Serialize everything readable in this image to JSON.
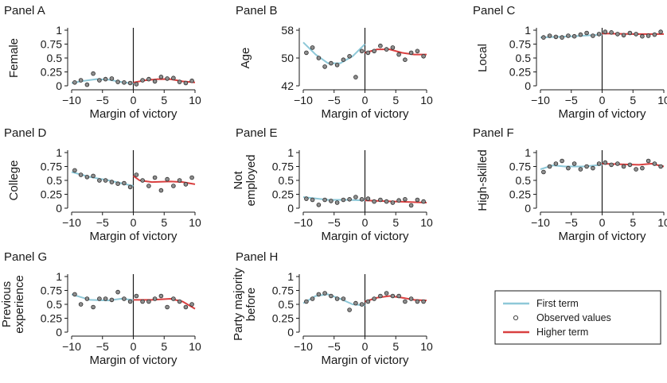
{
  "figure": {
    "xlabel": "Margin of victory",
    "legend": {
      "position": "bottom-right",
      "entries": [
        {
          "label": "First term",
          "kind": "line",
          "color": "#8ec8d8"
        },
        {
          "label": "Observed values",
          "kind": "marker"
        },
        {
          "label": "Higher term",
          "kind": "line",
          "color": "#d94040"
        }
      ]
    },
    "colors": {
      "first_term": "#8ec8d8",
      "higher_term": "#d94040",
      "marker_fill": "#8f8f8f",
      "marker_edge": "#2a2a2a"
    }
  },
  "chart_data": [
    {
      "type": "scatter",
      "panel": "Panel A",
      "ylabel": [
        "Female"
      ],
      "xlim": [
        -10,
        10
      ],
      "ylim": [
        0,
        1
      ],
      "xticks": [
        -10,
        -5,
        0,
        5,
        10
      ],
      "xticklabels": [
        "−10",
        "−5",
        "0",
        "5",
        "10"
      ],
      "yticks": [
        0,
        0.25,
        0.5,
        0.75,
        1
      ],
      "yticklabels": [
        "0",
        "0.25",
        "0.5",
        "0.75",
        "1"
      ],
      "cutoff": 0,
      "observed": [
        [
          -9.5,
          0.06
        ],
        [
          -8.5,
          0.1
        ],
        [
          -7.5,
          0.02
        ],
        [
          -6.5,
          0.22
        ],
        [
          -5.5,
          0.1
        ],
        [
          -4.5,
          0.12
        ],
        [
          -3.5,
          0.13
        ],
        [
          -2.5,
          0.07
        ],
        [
          -1.5,
          0.06
        ],
        [
          -0.5,
          0.05
        ],
        [
          0.5,
          0.03
        ],
        [
          1.5,
          0.1
        ],
        [
          2.5,
          0.12
        ],
        [
          3.5,
          0.08
        ],
        [
          4.5,
          0.16
        ],
        [
          5.5,
          0.13
        ],
        [
          6.5,
          0.14
        ],
        [
          7.5,
          0.07
        ],
        [
          8.5,
          0.05
        ],
        [
          9.5,
          0.09
        ]
      ],
      "first_term": [
        [
          -10,
          0.05
        ],
        [
          -8,
          0.09
        ],
        [
          -6,
          0.12
        ],
        [
          -4,
          0.11
        ],
        [
          -2,
          0.07
        ],
        [
          0,
          0.04
        ]
      ],
      "higher_term": [
        [
          0,
          0.06
        ],
        [
          2,
          0.1
        ],
        [
          4,
          0.12
        ],
        [
          6,
          0.12
        ],
        [
          8,
          0.08
        ],
        [
          10,
          0.06
        ]
      ]
    },
    {
      "type": "scatter",
      "panel": "Panel B",
      "ylabel": [
        "Age"
      ],
      "xlim": [
        -10,
        10
      ],
      "ylim": [
        42,
        58
      ],
      "xticks": [
        -10,
        -5,
        0,
        5,
        10
      ],
      "xticklabels": [
        "−10",
        "−5",
        "0",
        "5",
        "10"
      ],
      "yticks": [
        42,
        50,
        58
      ],
      "yticklabels": [
        "42",
        "50",
        "58"
      ],
      "cutoff": 0,
      "observed": [
        [
          -9.5,
          51.5
        ],
        [
          -8.5,
          53.0
        ],
        [
          -7.5,
          50.0
        ],
        [
          -6.5,
          47.5
        ],
        [
          -5.5,
          48.5
        ],
        [
          -4.5,
          48.0
        ],
        [
          -3.5,
          49.5
        ],
        [
          -2.5,
          50.5
        ],
        [
          -1.5,
          44.5
        ],
        [
          -0.5,
          52.0
        ],
        [
          0.5,
          51.5
        ],
        [
          1.5,
          52.0
        ],
        [
          2.5,
          53.5
        ],
        [
          3.5,
          52.5
        ],
        [
          4.5,
          53.0
        ],
        [
          5.5,
          51.0
        ],
        [
          6.5,
          49.5
        ],
        [
          7.5,
          51.5
        ],
        [
          8.5,
          52.0
        ],
        [
          9.5,
          50.5
        ]
      ],
      "first_term": [
        [
          -10,
          54.5
        ],
        [
          -8,
          51.0
        ],
        [
          -6,
          48.5
        ],
        [
          -4,
          48.5
        ],
        [
          -2,
          50.5
        ],
        [
          0,
          54.0
        ]
      ],
      "higher_term": [
        [
          0,
          51.5
        ],
        [
          2,
          52.5
        ],
        [
          4,
          52.5
        ],
        [
          6,
          51.5
        ],
        [
          8,
          51.0
        ],
        [
          10,
          51.0
        ]
      ]
    },
    {
      "type": "scatter",
      "panel": "Panel C",
      "ylabel": [
        "Local"
      ],
      "xlim": [
        -10,
        10
      ],
      "ylim": [
        0,
        1
      ],
      "xticks": [
        -10,
        -5,
        0,
        5,
        10
      ],
      "xticklabels": [
        "−10",
        "−5",
        "0",
        "5",
        "10"
      ],
      "yticks": [
        0,
        0.25,
        0.5,
        0.75,
        1
      ],
      "yticklabels": [
        "0",
        "0.25",
        "0.5",
        "0.75",
        "1"
      ],
      "cutoff": 0,
      "observed": [
        [
          -9.5,
          0.87
        ],
        [
          -8.5,
          0.9
        ],
        [
          -7.5,
          0.88
        ],
        [
          -6.5,
          0.87
        ],
        [
          -5.5,
          0.9
        ],
        [
          -4.5,
          0.89
        ],
        [
          -3.5,
          0.92
        ],
        [
          -2.5,
          0.95
        ],
        [
          -1.5,
          0.9
        ],
        [
          -0.5,
          0.93
        ],
        [
          0.5,
          0.97
        ],
        [
          1.5,
          0.96
        ],
        [
          2.5,
          0.93
        ],
        [
          3.5,
          0.91
        ],
        [
          4.5,
          0.95
        ],
        [
          5.5,
          0.93
        ],
        [
          6.5,
          0.89
        ],
        [
          7.5,
          0.9
        ],
        [
          8.5,
          0.92
        ],
        [
          9.5,
          0.97
        ]
      ],
      "first_term": [
        [
          -10,
          0.87
        ],
        [
          -5,
          0.89
        ],
        [
          0,
          0.92
        ]
      ],
      "higher_term": [
        [
          0,
          0.94
        ],
        [
          5,
          0.93
        ],
        [
          10,
          0.93
        ]
      ]
    },
    {
      "type": "scatter",
      "panel": "Panel D",
      "ylabel": [
        "College"
      ],
      "xlim": [
        -10,
        10
      ],
      "ylim": [
        0,
        1
      ],
      "xticks": [
        -10,
        -5,
        0,
        5,
        10
      ],
      "xticklabels": [
        "−10",
        "−5",
        "0",
        "5",
        "10"
      ],
      "yticks": [
        0,
        0.25,
        0.5,
        0.75,
        1
      ],
      "yticklabels": [
        "0",
        "0.25",
        "0.5",
        "0.75",
        "1"
      ],
      "cutoff": 0,
      "observed": [
        [
          -9.5,
          0.68
        ],
        [
          -8.5,
          0.6
        ],
        [
          -7.5,
          0.56
        ],
        [
          -6.5,
          0.58
        ],
        [
          -5.5,
          0.5
        ],
        [
          -4.5,
          0.5
        ],
        [
          -3.5,
          0.47
        ],
        [
          -2.5,
          0.44
        ],
        [
          -1.5,
          0.45
        ],
        [
          -0.5,
          0.38
        ],
        [
          0.5,
          0.6
        ],
        [
          1.5,
          0.5
        ],
        [
          2.5,
          0.4
        ],
        [
          3.5,
          0.55
        ],
        [
          4.5,
          0.32
        ],
        [
          5.5,
          0.52
        ],
        [
          6.5,
          0.4
        ],
        [
          7.5,
          0.5
        ],
        [
          8.5,
          0.43
        ],
        [
          9.5,
          0.55
        ]
      ],
      "first_term": [
        [
          -10,
          0.65
        ],
        [
          -7,
          0.56
        ],
        [
          -4,
          0.5
        ],
        [
          -2,
          0.45
        ],
        [
          0,
          0.4
        ]
      ],
      "higher_term": [
        [
          0,
          0.58
        ],
        [
          1,
          0.5
        ],
        [
          3,
          0.47
        ],
        [
          6,
          0.48
        ],
        [
          8,
          0.47
        ],
        [
          10,
          0.43
        ]
      ]
    },
    {
      "type": "scatter",
      "panel": "Panel E",
      "ylabel": [
        "Not",
        "employed"
      ],
      "xlim": [
        -10,
        10
      ],
      "ylim": [
        0,
        1
      ],
      "xticks": [
        -10,
        -5,
        0,
        5,
        10
      ],
      "xticklabels": [
        "−10",
        "−5",
        "0",
        "5",
        "10"
      ],
      "yticks": [
        0,
        0.25,
        0.5,
        0.75,
        1
      ],
      "yticklabels": [
        "0",
        "0.25",
        "0.5",
        "0.75",
        "1"
      ],
      "cutoff": 0,
      "observed": [
        [
          -9.5,
          0.17
        ],
        [
          -8.5,
          0.15
        ],
        [
          -7.5,
          0.06
        ],
        [
          -6.5,
          0.15
        ],
        [
          -5.5,
          0.13
        ],
        [
          -4.5,
          0.1
        ],
        [
          -3.5,
          0.15
        ],
        [
          -2.5,
          0.16
        ],
        [
          -1.5,
          0.2
        ],
        [
          -0.5,
          0.16
        ],
        [
          0.5,
          0.17
        ],
        [
          1.5,
          0.12
        ],
        [
          2.5,
          0.15
        ],
        [
          3.5,
          0.12
        ],
        [
          4.5,
          0.1
        ],
        [
          5.5,
          0.14
        ],
        [
          6.5,
          0.16
        ],
        [
          7.5,
          0.05
        ],
        [
          8.5,
          0.15
        ],
        [
          9.5,
          0.12
        ]
      ],
      "first_term": [
        [
          -10,
          0.2
        ],
        [
          -6,
          0.15
        ],
        [
          -3,
          0.15
        ],
        [
          0,
          0.14
        ]
      ],
      "higher_term": [
        [
          0,
          0.14
        ],
        [
          5,
          0.12
        ],
        [
          10,
          0.1
        ]
      ]
    },
    {
      "type": "scatter",
      "panel": "Panel F",
      "ylabel": [
        "High-skilled"
      ],
      "xlim": [
        -10,
        10
      ],
      "ylim": [
        0,
        1
      ],
      "xticks": [
        -10,
        -5,
        0,
        5,
        10
      ],
      "xticklabels": [
        "−10",
        "−5",
        "0",
        "5",
        "10"
      ],
      "yticks": [
        0,
        0.25,
        0.5,
        0.75,
        1
      ],
      "yticklabels": [
        "0",
        "0.25",
        "0.5",
        "0.75",
        "1"
      ],
      "cutoff": 0,
      "observed": [
        [
          -9.5,
          0.65
        ],
        [
          -8.5,
          0.75
        ],
        [
          -7.5,
          0.8
        ],
        [
          -6.5,
          0.85
        ],
        [
          -5.5,
          0.72
        ],
        [
          -4.5,
          0.8
        ],
        [
          -3.5,
          0.7
        ],
        [
          -2.5,
          0.75
        ],
        [
          -1.5,
          0.72
        ],
        [
          -0.5,
          0.8
        ],
        [
          0.5,
          0.82
        ],
        [
          1.5,
          0.78
        ],
        [
          2.5,
          0.8
        ],
        [
          3.5,
          0.75
        ],
        [
          4.5,
          0.78
        ],
        [
          5.5,
          0.7
        ],
        [
          6.5,
          0.72
        ],
        [
          7.5,
          0.85
        ],
        [
          8.5,
          0.8
        ],
        [
          9.5,
          0.75
        ]
      ],
      "first_term": [
        [
          -10,
          0.7
        ],
        [
          -8,
          0.77
        ],
        [
          -6,
          0.75
        ],
        [
          -3,
          0.75
        ],
        [
          0,
          0.78
        ]
      ],
      "higher_term": [
        [
          0,
          0.8
        ],
        [
          3,
          0.79
        ],
        [
          6,
          0.78
        ],
        [
          8,
          0.8
        ],
        [
          10,
          0.75
        ]
      ]
    },
    {
      "type": "scatter",
      "panel": "Panel G",
      "ylabel": [
        "Previous",
        "experience"
      ],
      "xlim": [
        -10,
        10
      ],
      "ylim": [
        0,
        1
      ],
      "xticks": [
        -10,
        -5,
        0,
        5,
        10
      ],
      "xticklabels": [
        "−10",
        "−5",
        "0",
        "5",
        "10"
      ],
      "yticks": [
        0,
        0.25,
        0.5,
        0.75,
        1
      ],
      "yticklabels": [
        "0",
        "0.25",
        "0.5",
        "0.75",
        "1"
      ],
      "cutoff": 0,
      "observed": [
        [
          -9.5,
          0.68
        ],
        [
          -8.5,
          0.5
        ],
        [
          -7.5,
          0.6
        ],
        [
          -6.5,
          0.45
        ],
        [
          -5.5,
          0.6
        ],
        [
          -4.5,
          0.6
        ],
        [
          -3.5,
          0.58
        ],
        [
          -2.5,
          0.72
        ],
        [
          -1.5,
          0.6
        ],
        [
          -0.5,
          0.55
        ],
        [
          0.5,
          0.65
        ],
        [
          1.5,
          0.55
        ],
        [
          2.5,
          0.55
        ],
        [
          3.5,
          0.6
        ],
        [
          4.5,
          0.65
        ],
        [
          5.5,
          0.45
        ],
        [
          6.5,
          0.6
        ],
        [
          7.5,
          0.55
        ],
        [
          8.5,
          0.45
        ],
        [
          9.5,
          0.5
        ]
      ],
      "first_term": [
        [
          -10,
          0.68
        ],
        [
          -7,
          0.58
        ],
        [
          -4,
          0.57
        ],
        [
          -2,
          0.6
        ],
        [
          0,
          0.58
        ]
      ],
      "higher_term": [
        [
          0,
          0.58
        ],
        [
          3,
          0.58
        ],
        [
          6,
          0.6
        ],
        [
          8,
          0.55
        ],
        [
          10,
          0.42
        ]
      ]
    },
    {
      "type": "scatter",
      "panel": "Panel H",
      "ylabel": [
        "Party majority",
        "before"
      ],
      "xlim": [
        -10,
        10
      ],
      "ylim": [
        0,
        1
      ],
      "xticks": [
        -10,
        -5,
        0,
        5,
        10
      ],
      "xticklabels": [
        "−10",
        "−5",
        "0",
        "5",
        "10"
      ],
      "yticks": [
        0,
        0.25,
        0.5,
        0.75,
        1
      ],
      "yticklabels": [
        "0",
        "0.25",
        "0.5",
        "0.75",
        "1"
      ],
      "cutoff": 0,
      "observed": [
        [
          -9.5,
          0.55
        ],
        [
          -8.5,
          0.6
        ],
        [
          -7.5,
          0.68
        ],
        [
          -6.5,
          0.7
        ],
        [
          -5.5,
          0.65
        ],
        [
          -4.5,
          0.6
        ],
        [
          -3.5,
          0.6
        ],
        [
          -2.5,
          0.4
        ],
        [
          -1.5,
          0.52
        ],
        [
          -0.5,
          0.5
        ],
        [
          0.5,
          0.55
        ],
        [
          1.5,
          0.6
        ],
        [
          2.5,
          0.65
        ],
        [
          3.5,
          0.7
        ],
        [
          4.5,
          0.65
        ],
        [
          5.5,
          0.65
        ],
        [
          6.5,
          0.55
        ],
        [
          7.5,
          0.6
        ],
        [
          8.5,
          0.55
        ],
        [
          9.5,
          0.55
        ]
      ],
      "first_term": [
        [
          -10,
          0.52
        ],
        [
          -8,
          0.65
        ],
        [
          -6,
          0.68
        ],
        [
          -4,
          0.6
        ],
        [
          -2,
          0.5
        ],
        [
          0,
          0.48
        ]
      ],
      "higher_term": [
        [
          0,
          0.55
        ],
        [
          2,
          0.62
        ],
        [
          4,
          0.65
        ],
        [
          6,
          0.62
        ],
        [
          8,
          0.58
        ],
        [
          10,
          0.57
        ]
      ]
    }
  ]
}
